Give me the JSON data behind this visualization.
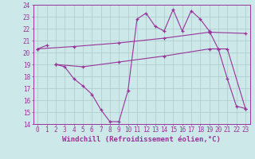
{
  "background_color": "#cce8e8",
  "grid_color": "#aacccc",
  "line_color": "#993399",
  "xlim": [
    -0.5,
    23.5
  ],
  "ylim": [
    14,
    24
  ],
  "yticks": [
    14,
    15,
    16,
    17,
    18,
    19,
    20,
    21,
    22,
    23,
    24
  ],
  "xticks": [
    0,
    1,
    2,
    3,
    4,
    5,
    6,
    7,
    8,
    9,
    10,
    11,
    12,
    13,
    14,
    15,
    16,
    17,
    18,
    19,
    20,
    21,
    22,
    23
  ],
  "xlabel": "Windchill (Refroidissement éolien,°C)",
  "series": [
    {
      "x": [
        0,
        1
      ],
      "y": [
        20.3,
        20.6
      ]
    },
    {
      "x": [
        2,
        3,
        4,
        5,
        6,
        7,
        8,
        9,
        10,
        11,
        12,
        13,
        14,
        15,
        16,
        17,
        18,
        19,
        20,
        21,
        22,
        23
      ],
      "y": [
        19.0,
        18.8,
        17.8,
        17.2,
        16.5,
        15.2,
        14.2,
        14.2,
        16.8,
        22.8,
        23.3,
        22.2,
        21.8,
        23.6,
        21.8,
        23.5,
        22.8,
        21.8,
        20.3,
        17.8,
        15.5,
        15.3
      ]
    },
    {
      "x": [
        0,
        4,
        9,
        14,
        19,
        23
      ],
      "y": [
        20.3,
        20.5,
        20.8,
        21.2,
        21.7,
        21.6
      ]
    },
    {
      "x": [
        2,
        5,
        9,
        14,
        19,
        20,
        21,
        23
      ],
      "y": [
        19.0,
        18.8,
        19.2,
        19.7,
        20.3,
        20.3,
        20.3,
        15.3
      ]
    }
  ],
  "tick_fontsize": 5.5,
  "label_fontsize": 6.5,
  "marker_size": 3,
  "line_width": 0.8
}
